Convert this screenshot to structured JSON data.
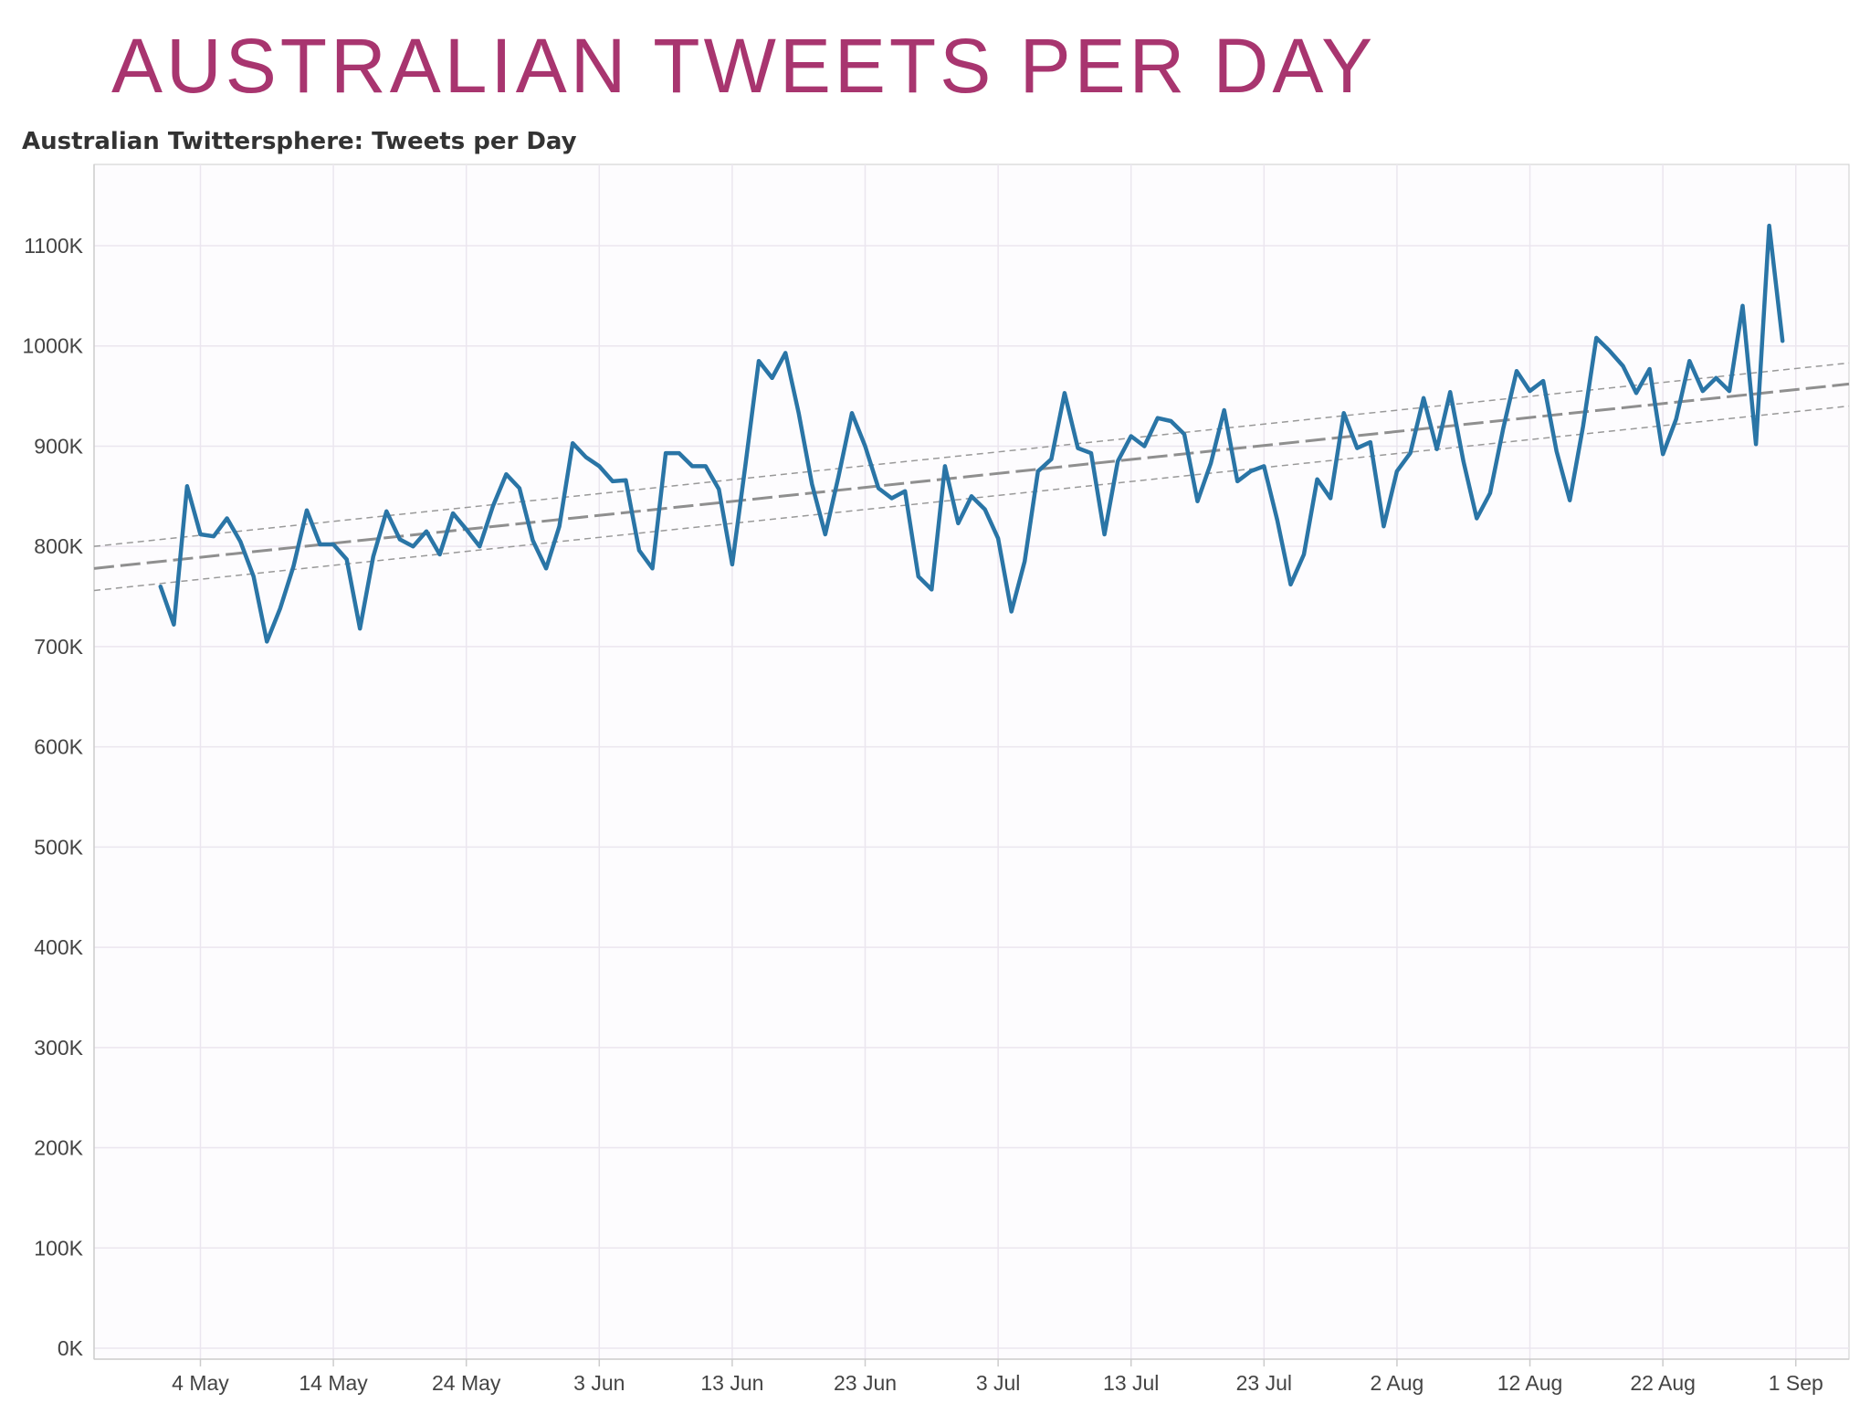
{
  "slide": {
    "title": "AUSTRALIAN TWEETS PER DAY"
  },
  "colors": {
    "title": "#a8356f",
    "line": "#2a75a6",
    "trend": "#999999",
    "grid": "#ebe6ef",
    "axis": "#cccccc"
  },
  "chart_data": {
    "type": "line",
    "title": "Australian Twittersphere: Tweets per Day",
    "xlabel": "",
    "ylabel": "",
    "grid": true,
    "x_axis": {
      "type": "date",
      "year": 2015,
      "range": [
        "2015-04-26",
        "2015-09-05"
      ],
      "tick_labels": [
        "4 May",
        "14 May",
        "24 May",
        "3 Jun",
        "13 Jun",
        "23 Jun",
        "3 Jul",
        "13 Jul",
        "23 Jul",
        "2 Aug",
        "12 Aug",
        "22 Aug",
        "1 Sep"
      ],
      "tick_dates": [
        "2015-05-04",
        "2015-05-14",
        "2015-05-24",
        "2015-06-03",
        "2015-06-13",
        "2015-06-23",
        "2015-07-03",
        "2015-07-13",
        "2015-07-23",
        "2015-08-02",
        "2015-08-12",
        "2015-08-22",
        "2015-09-01"
      ]
    },
    "y_axis": {
      "ylim": [
        0,
        1150000
      ],
      "ticks": [
        0,
        100000,
        200000,
        300000,
        400000,
        500000,
        600000,
        700000,
        800000,
        900000,
        1000000,
        1100000
      ],
      "tick_labels": [
        "0K",
        "100K",
        "200K",
        "300K",
        "400K",
        "500K",
        "600K",
        "700K",
        "800K",
        "900K",
        "1000K",
        "1100K"
      ]
    },
    "series": [
      {
        "x": [
          "2015-05-01",
          "2015-05-02",
          "2015-05-03",
          "2015-05-04",
          "2015-05-05",
          "2015-05-06",
          "2015-05-07",
          "2015-05-08",
          "2015-05-09",
          "2015-05-10",
          "2015-05-11",
          "2015-05-12",
          "2015-05-13",
          "2015-05-14",
          "2015-05-15",
          "2015-05-16",
          "2015-05-17",
          "2015-05-18",
          "2015-05-19",
          "2015-05-20",
          "2015-05-21",
          "2015-05-22",
          "2015-05-23",
          "2015-05-24",
          "2015-05-25",
          "2015-05-26",
          "2015-05-27",
          "2015-05-28",
          "2015-05-29",
          "2015-05-30",
          "2015-05-31",
          "2015-06-01",
          "2015-06-02",
          "2015-06-03",
          "2015-06-04",
          "2015-06-05",
          "2015-06-06",
          "2015-06-07",
          "2015-06-08",
          "2015-06-09",
          "2015-06-10",
          "2015-06-11",
          "2015-06-12",
          "2015-06-13",
          "2015-06-14",
          "2015-06-15",
          "2015-06-16",
          "2015-06-17",
          "2015-06-18",
          "2015-06-19",
          "2015-06-20",
          "2015-06-21",
          "2015-06-22",
          "2015-06-23",
          "2015-06-24",
          "2015-06-25",
          "2015-06-26",
          "2015-06-27",
          "2015-06-28",
          "2015-06-29",
          "2015-06-30",
          "2015-07-01",
          "2015-07-02",
          "2015-07-03",
          "2015-07-04",
          "2015-07-05",
          "2015-07-06",
          "2015-07-07",
          "2015-07-08",
          "2015-07-09",
          "2015-07-10",
          "2015-07-11",
          "2015-07-12",
          "2015-07-13",
          "2015-07-14",
          "2015-07-15",
          "2015-07-16",
          "2015-07-17",
          "2015-07-18",
          "2015-07-19",
          "2015-07-20",
          "2015-07-21",
          "2015-07-22",
          "2015-07-23",
          "2015-07-24",
          "2015-07-25",
          "2015-07-26",
          "2015-07-27",
          "2015-07-28",
          "2015-07-29",
          "2015-07-30",
          "2015-07-31",
          "2015-08-01",
          "2015-08-02",
          "2015-08-03",
          "2015-08-04",
          "2015-08-05",
          "2015-08-06",
          "2015-08-07",
          "2015-08-08",
          "2015-08-09",
          "2015-08-10",
          "2015-08-11",
          "2015-08-12",
          "2015-08-13",
          "2015-08-14",
          "2015-08-15",
          "2015-08-16",
          "2015-08-17",
          "2015-08-18",
          "2015-08-19",
          "2015-08-20",
          "2015-08-21",
          "2015-08-22",
          "2015-08-23",
          "2015-08-24",
          "2015-08-25",
          "2015-08-26",
          "2015-08-27",
          "2015-08-28",
          "2015-08-29",
          "2015-08-30",
          "2015-08-31"
        ],
        "values": [
          760000,
          722000,
          860000,
          812000,
          810000,
          828000,
          805000,
          770000,
          705000,
          738000,
          780000,
          836000,
          802000,
          802000,
          787000,
          718000,
          790000,
          835000,
          807000,
          800000,
          815000,
          792000,
          833000,
          817000,
          800000,
          840000,
          872000,
          858000,
          806000,
          778000,
          820000,
          903000,
          889000,
          880000,
          865000,
          866000,
          796000,
          778000,
          893000,
          893000,
          880000,
          880000,
          857000,
          782000,
          882000,
          985000,
          968000,
          993000,
          933000,
          862000,
          812000,
          870000,
          933000,
          900000,
          858000,
          848000,
          855000,
          770000,
          757000,
          880000,
          823000,
          850000,
          837000,
          808000,
          735000,
          785000,
          875000,
          887000,
          953000,
          898000,
          893000,
          812000,
          885000,
          910000,
          900000,
          928000,
          925000,
          912000,
          845000,
          883000,
          936000,
          865000,
          875000,
          880000,
          826000,
          762000,
          792000,
          867000,
          848000,
          933000,
          898000,
          904000,
          820000,
          875000,
          893000,
          948000,
          897000,
          954000,
          885000,
          828000,
          853000,
          918000,
          975000,
          955000,
          965000,
          895000,
          846000,
          920000,
          1008000,
          995000,
          980000,
          953000,
          977000,
          892000,
          927000,
          985000,
          955000,
          968000,
          955000,
          1040000,
          902000,
          1120000,
          1005000
        ]
      }
    ],
    "trend_line": {
      "type": "linear",
      "at_start": 778000,
      "at_end": 962000,
      "upper_band_start": 800000,
      "upper_band_end": 983000,
      "lower_band_start": 756000,
      "lower_band_end": 940000
    }
  }
}
